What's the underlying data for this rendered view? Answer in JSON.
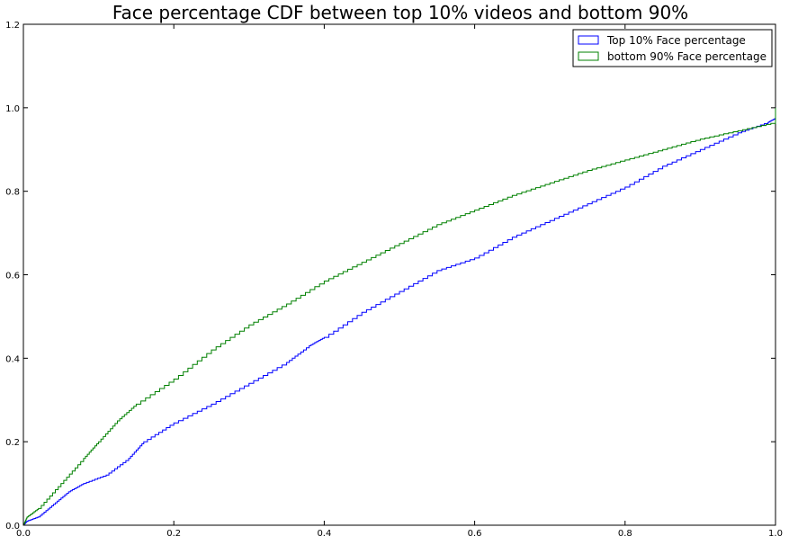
{
  "chart_data": {
    "type": "line",
    "title": "Face percentage CDF between top 10% videos and bottom 90%",
    "xlabel": "",
    "ylabel": "",
    "xlim": [
      0,
      1.0
    ],
    "ylim": [
      0,
      1.2
    ],
    "x_ticks": [
      "0.0",
      "0.2",
      "0.4",
      "0.6",
      "0.8",
      "1.0"
    ],
    "y_ticks": [
      "0.0",
      "0.2",
      "0.4",
      "0.6",
      "0.8",
      "1.0",
      "1.2"
    ],
    "legend_position": "top-right",
    "grid": false,
    "series": [
      {
        "name": "Top 10% Face percentage",
        "color": "#0000ff",
        "points": [
          [
            0.0,
            0.0
          ],
          [
            0.005,
            0.01
          ],
          [
            0.02,
            0.02
          ],
          [
            0.04,
            0.05
          ],
          [
            0.06,
            0.08
          ],
          [
            0.08,
            0.1
          ],
          [
            0.11,
            0.12
          ],
          [
            0.14,
            0.16
          ],
          [
            0.16,
            0.2
          ],
          [
            0.2,
            0.245
          ],
          [
            0.25,
            0.29
          ],
          [
            0.3,
            0.34
          ],
          [
            0.35,
            0.39
          ],
          [
            0.38,
            0.43
          ],
          [
            0.4,
            0.45
          ],
          [
            0.45,
            0.51
          ],
          [
            0.5,
            0.56
          ],
          [
            0.55,
            0.61
          ],
          [
            0.6,
            0.64
          ],
          [
            0.65,
            0.69
          ],
          [
            0.7,
            0.73
          ],
          [
            0.75,
            0.77
          ],
          [
            0.8,
            0.81
          ],
          [
            0.85,
            0.86
          ],
          [
            0.9,
            0.9
          ],
          [
            0.95,
            0.94
          ],
          [
            0.99,
            0.965
          ],
          [
            1.0,
            0.975
          ],
          [
            1.0,
            1.0
          ]
        ]
      },
      {
        "name": "bottom 90% Face percentage",
        "color": "#008000",
        "points": [
          [
            0.0,
            0.0
          ],
          [
            0.005,
            0.02
          ],
          [
            0.02,
            0.04
          ],
          [
            0.05,
            0.1
          ],
          [
            0.08,
            0.16
          ],
          [
            0.1,
            0.2
          ],
          [
            0.125,
            0.25
          ],
          [
            0.15,
            0.29
          ],
          [
            0.2,
            0.35
          ],
          [
            0.25,
            0.42
          ],
          [
            0.3,
            0.48
          ],
          [
            0.35,
            0.53
          ],
          [
            0.4,
            0.585
          ],
          [
            0.45,
            0.63
          ],
          [
            0.5,
            0.675
          ],
          [
            0.55,
            0.72
          ],
          [
            0.6,
            0.755
          ],
          [
            0.65,
            0.79
          ],
          [
            0.7,
            0.82
          ],
          [
            0.75,
            0.85
          ],
          [
            0.8,
            0.875
          ],
          [
            0.85,
            0.9
          ],
          [
            0.9,
            0.925
          ],
          [
            0.95,
            0.945
          ],
          [
            1.0,
            0.965
          ],
          [
            1.0,
            1.0
          ]
        ]
      }
    ]
  }
}
